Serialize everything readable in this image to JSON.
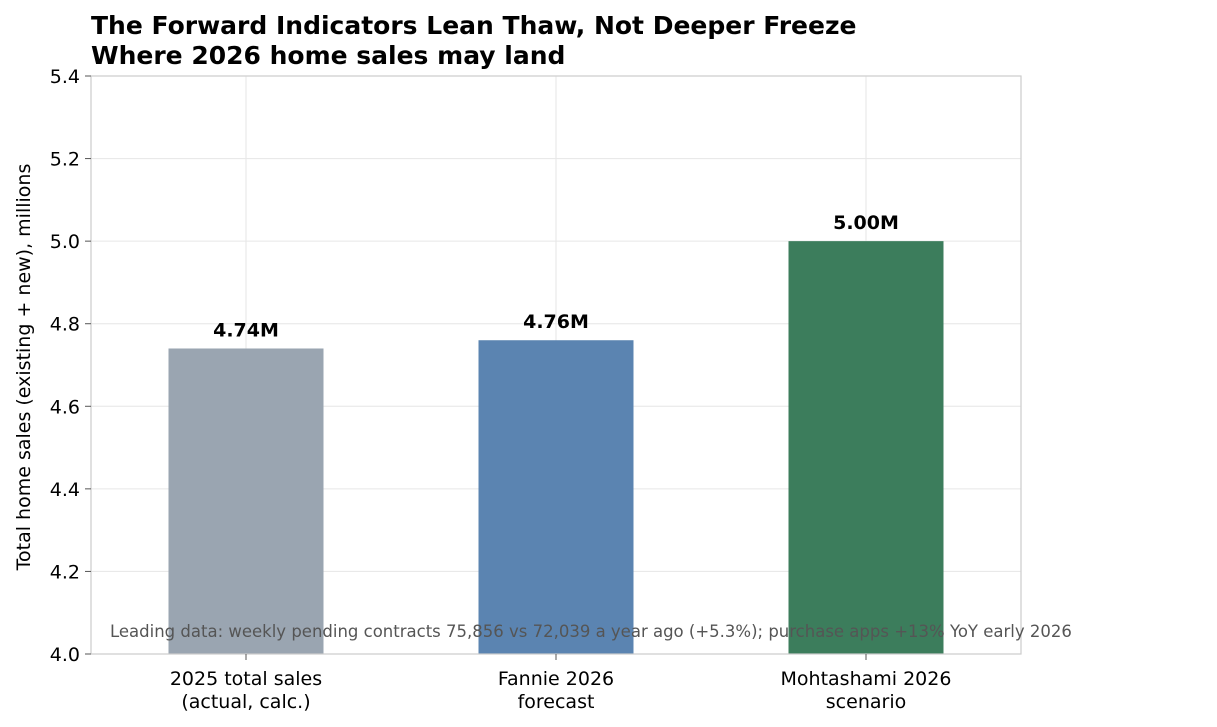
{
  "chart_data": {
    "type": "bar",
    "title": "The Forward Indicators Lean Thaw, Not Deeper Freeze",
    "subtitle": "Where 2026 home sales may land",
    "xlabel": "",
    "ylabel": "Total home sales (existing + new), millions",
    "categories": [
      [
        "2025 total sales",
        "(actual, calc.)"
      ],
      [
        "Fannie 2026",
        "forecast"
      ],
      [
        "Mohtashami 2026",
        "scenario"
      ]
    ],
    "values": [
      4.74,
      4.76,
      5.0
    ],
    "data_labels": [
      "4.74M",
      "4.76M",
      "5.00M"
    ],
    "colors": [
      "#9aa5b1",
      "#5b84b1",
      "#3c7d5c"
    ],
    "ylim": [
      4.0,
      5.4
    ],
    "yticks": [
      4.0,
      4.2,
      4.4,
      4.6,
      4.8,
      5.0,
      5.2,
      5.4
    ],
    "ytick_labels": [
      "4.0",
      "4.2",
      "4.4",
      "4.6",
      "4.8",
      "5.0",
      "5.2",
      "5.4"
    ],
    "grid": true,
    "annotation": "Leading data: weekly pending contracts 75,856 vs 72,039 a year ago (+5.3%); purchase apps +13% YoY early 2026"
  }
}
